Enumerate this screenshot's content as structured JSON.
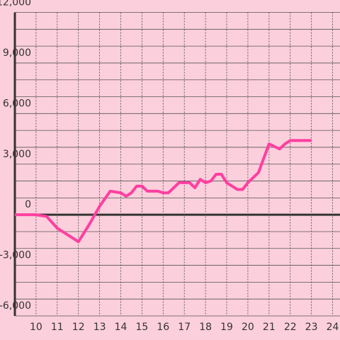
{
  "chart_data": {
    "type": "line",
    "x": [
      9,
      9.5,
      10,
      10.5,
      11,
      11.5,
      12,
      12.5,
      13,
      13.5,
      14,
      14.25,
      14.5,
      14.75,
      15,
      15.25,
      15.75,
      16,
      16.25,
      16.5,
      16.75,
      17.25,
      17.5,
      17.75,
      18,
      18.25,
      18.5,
      18.75,
      19,
      19.25,
      19.5,
      19.75,
      20,
      20.5,
      21,
      21.5,
      21.75,
      22,
      22.5,
      23
    ],
    "series": [
      {
        "color": "#ff3fa0",
        "values": [
          0,
          0,
          0,
          -100,
          -800,
          -1200,
          -1600,
          -600,
          500,
          1400,
          1300,
          1100,
          1300,
          1700,
          1700,
          1400,
          1400,
          1300,
          1300,
          1600,
          1900,
          1900,
          1600,
          2100,
          1900,
          2000,
          2400,
          2400,
          1900,
          1700,
          1500,
          1500,
          1900,
          2500,
          4200,
          3900,
          4200,
          4400,
          4400,
          4400
        ]
      }
    ],
    "xlim": [
      9,
      24.35
    ],
    "ylim": [
      -6000,
      12000
    ],
    "xticks": [
      10,
      11,
      12,
      13,
      14,
      15,
      16,
      17,
      18,
      19,
      20,
      21,
      22,
      23,
      24
    ],
    "yticks": [
      {
        "value": -6000,
        "label": "-6,000"
      },
      {
        "value": -3000,
        "label": "-3,000"
      },
      0,
      {
        "value": 3000,
        "label": "3,000"
      },
      {
        "value": 6000,
        "label": "6,000"
      },
      {
        "value": 9000,
        "label": "9,000"
      },
      {
        "value": 12000,
        "label": "12,000"
      }
    ],
    "yminorticks": [
      -5000,
      -4000,
      -2000,
      -1000,
      1000,
      2000,
      4000,
      5000,
      7000,
      8000,
      10000,
      11000
    ],
    "grid": true
  }
}
